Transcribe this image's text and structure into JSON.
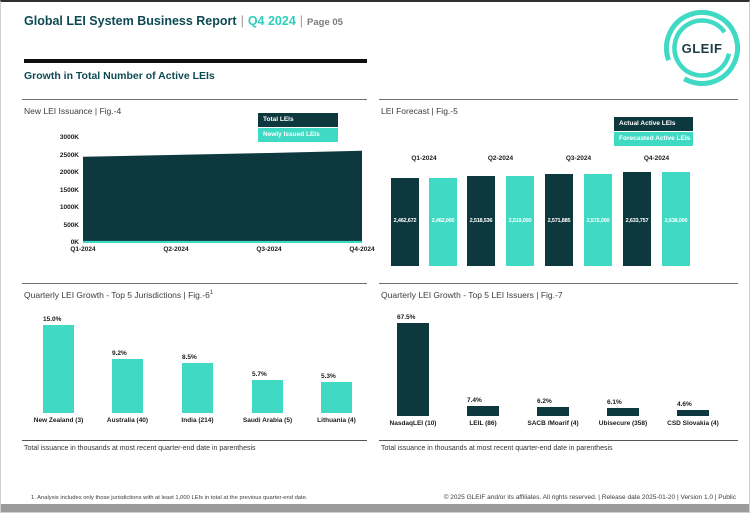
{
  "header": {
    "title": "Global LEI System Business Report",
    "sep": "|",
    "period": "Q4 2024",
    "page": "Page 05",
    "logo_text": "GLEIF"
  },
  "section_title": "Growth in Total Number of Active LEIs",
  "colors": {
    "dark_teal": "#0d393e",
    "teal": "#40d9c4",
    "accent_text": "#2ccfbb",
    "heading_teal": "#0c4a54",
    "bottom_bar_gray": "#9b9b9b"
  },
  "charts": {
    "fig4": {
      "title": "New LEI Issuance | Fig.-4"
    },
    "fig5": {
      "title": "LEI Forecast | Fig.-5"
    },
    "fig6": {
      "title": "Quarterly LEI Growth - Top 5 Jurisdictions | Fig.-6",
      "title_sup": "1",
      "caption": "Total issuance in thousands at most recent quarter-end date in parenthesis"
    },
    "fig7": {
      "title": "Quarterly LEI Growth - Top 5 LEI Issuers | Fig.-7",
      "caption": "Total issuance in thousands at most recent quarter-end date in parenthesis"
    }
  },
  "chart_data": [
    {
      "type": "area",
      "title": "New LEI Issuance | Fig.-4",
      "x": [
        "Q1-2024",
        "Q2-2024",
        "Q3-2024",
        "Q4-2024"
      ],
      "y_ticks": [
        "3000K",
        "2500K",
        "2000K",
        "1500K",
        "1000K",
        "500K",
        "0K"
      ],
      "ylim": [
        0,
        3000000
      ],
      "grid": false,
      "legend_position": "top-right",
      "series": [
        {
          "name": "Total LEIs",
          "color": "#0d393e",
          "values": [
            2462672,
            2518536,
            2571885,
            2633757
          ]
        },
        {
          "name": "Newly Issued LEIs",
          "color": "#40d9c4",
          "values": [
            60000,
            60000,
            60000,
            60000
          ]
        }
      ]
    },
    {
      "type": "bar",
      "title": "LEI Forecast | Fig.-5",
      "categories": [
        "Q1-2024",
        "Q2-2024",
        "Q3-2024",
        "Q4-2024"
      ],
      "legend_position": "top-right",
      "data_labels": true,
      "series": [
        {
          "name": "Actual Active LEIs",
          "color": "#0d393e",
          "values": [
            2462672,
            2518536,
            2571885,
            2633757
          ]
        },
        {
          "name": "Forecasted Active LEIs",
          "color": "#40d9c4",
          "values": [
            2462000,
            2519000,
            2572000,
            2638000
          ]
        }
      ]
    },
    {
      "type": "bar",
      "title": "Quarterly LEI Growth - Top 5 Jurisdictions | Fig.-6¹",
      "categories": [
        "New Zealand (3)",
        "Australia (40)",
        "India (214)",
        "Saudi Arabia (5)",
        "Lithuania (4)"
      ],
      "values": [
        15.0,
        9.2,
        8.5,
        5.7,
        5.3
      ],
      "unit": "%",
      "bar_color": "#40d9c4",
      "data_labels": true
    },
    {
      "type": "bar",
      "title": "Quarterly LEI Growth - Top 5 LEI Issuers | Fig.-7",
      "categories": [
        "NasdaqLEI (10)",
        "LEIL (86)",
        "SACB /Moarif (4)",
        "Ubisecure (358)",
        "CSD Slovakia (4)"
      ],
      "values": [
        67.5,
        7.4,
        6.2,
        6.1,
        4.6
      ],
      "unit": "%",
      "bar_color": "#0d393e",
      "data_labels": true
    }
  ],
  "footer": {
    "footnote": "1. Analysis includes only those jurisdictions with at least 1,000 LEIs in total at the previous quarter-end date.",
    "copyright": "© 2025 GLEIF and/or its affiliates. All rights reserved.  |  Release date 2025-01-20  |  Version 1.0  |  Public"
  }
}
